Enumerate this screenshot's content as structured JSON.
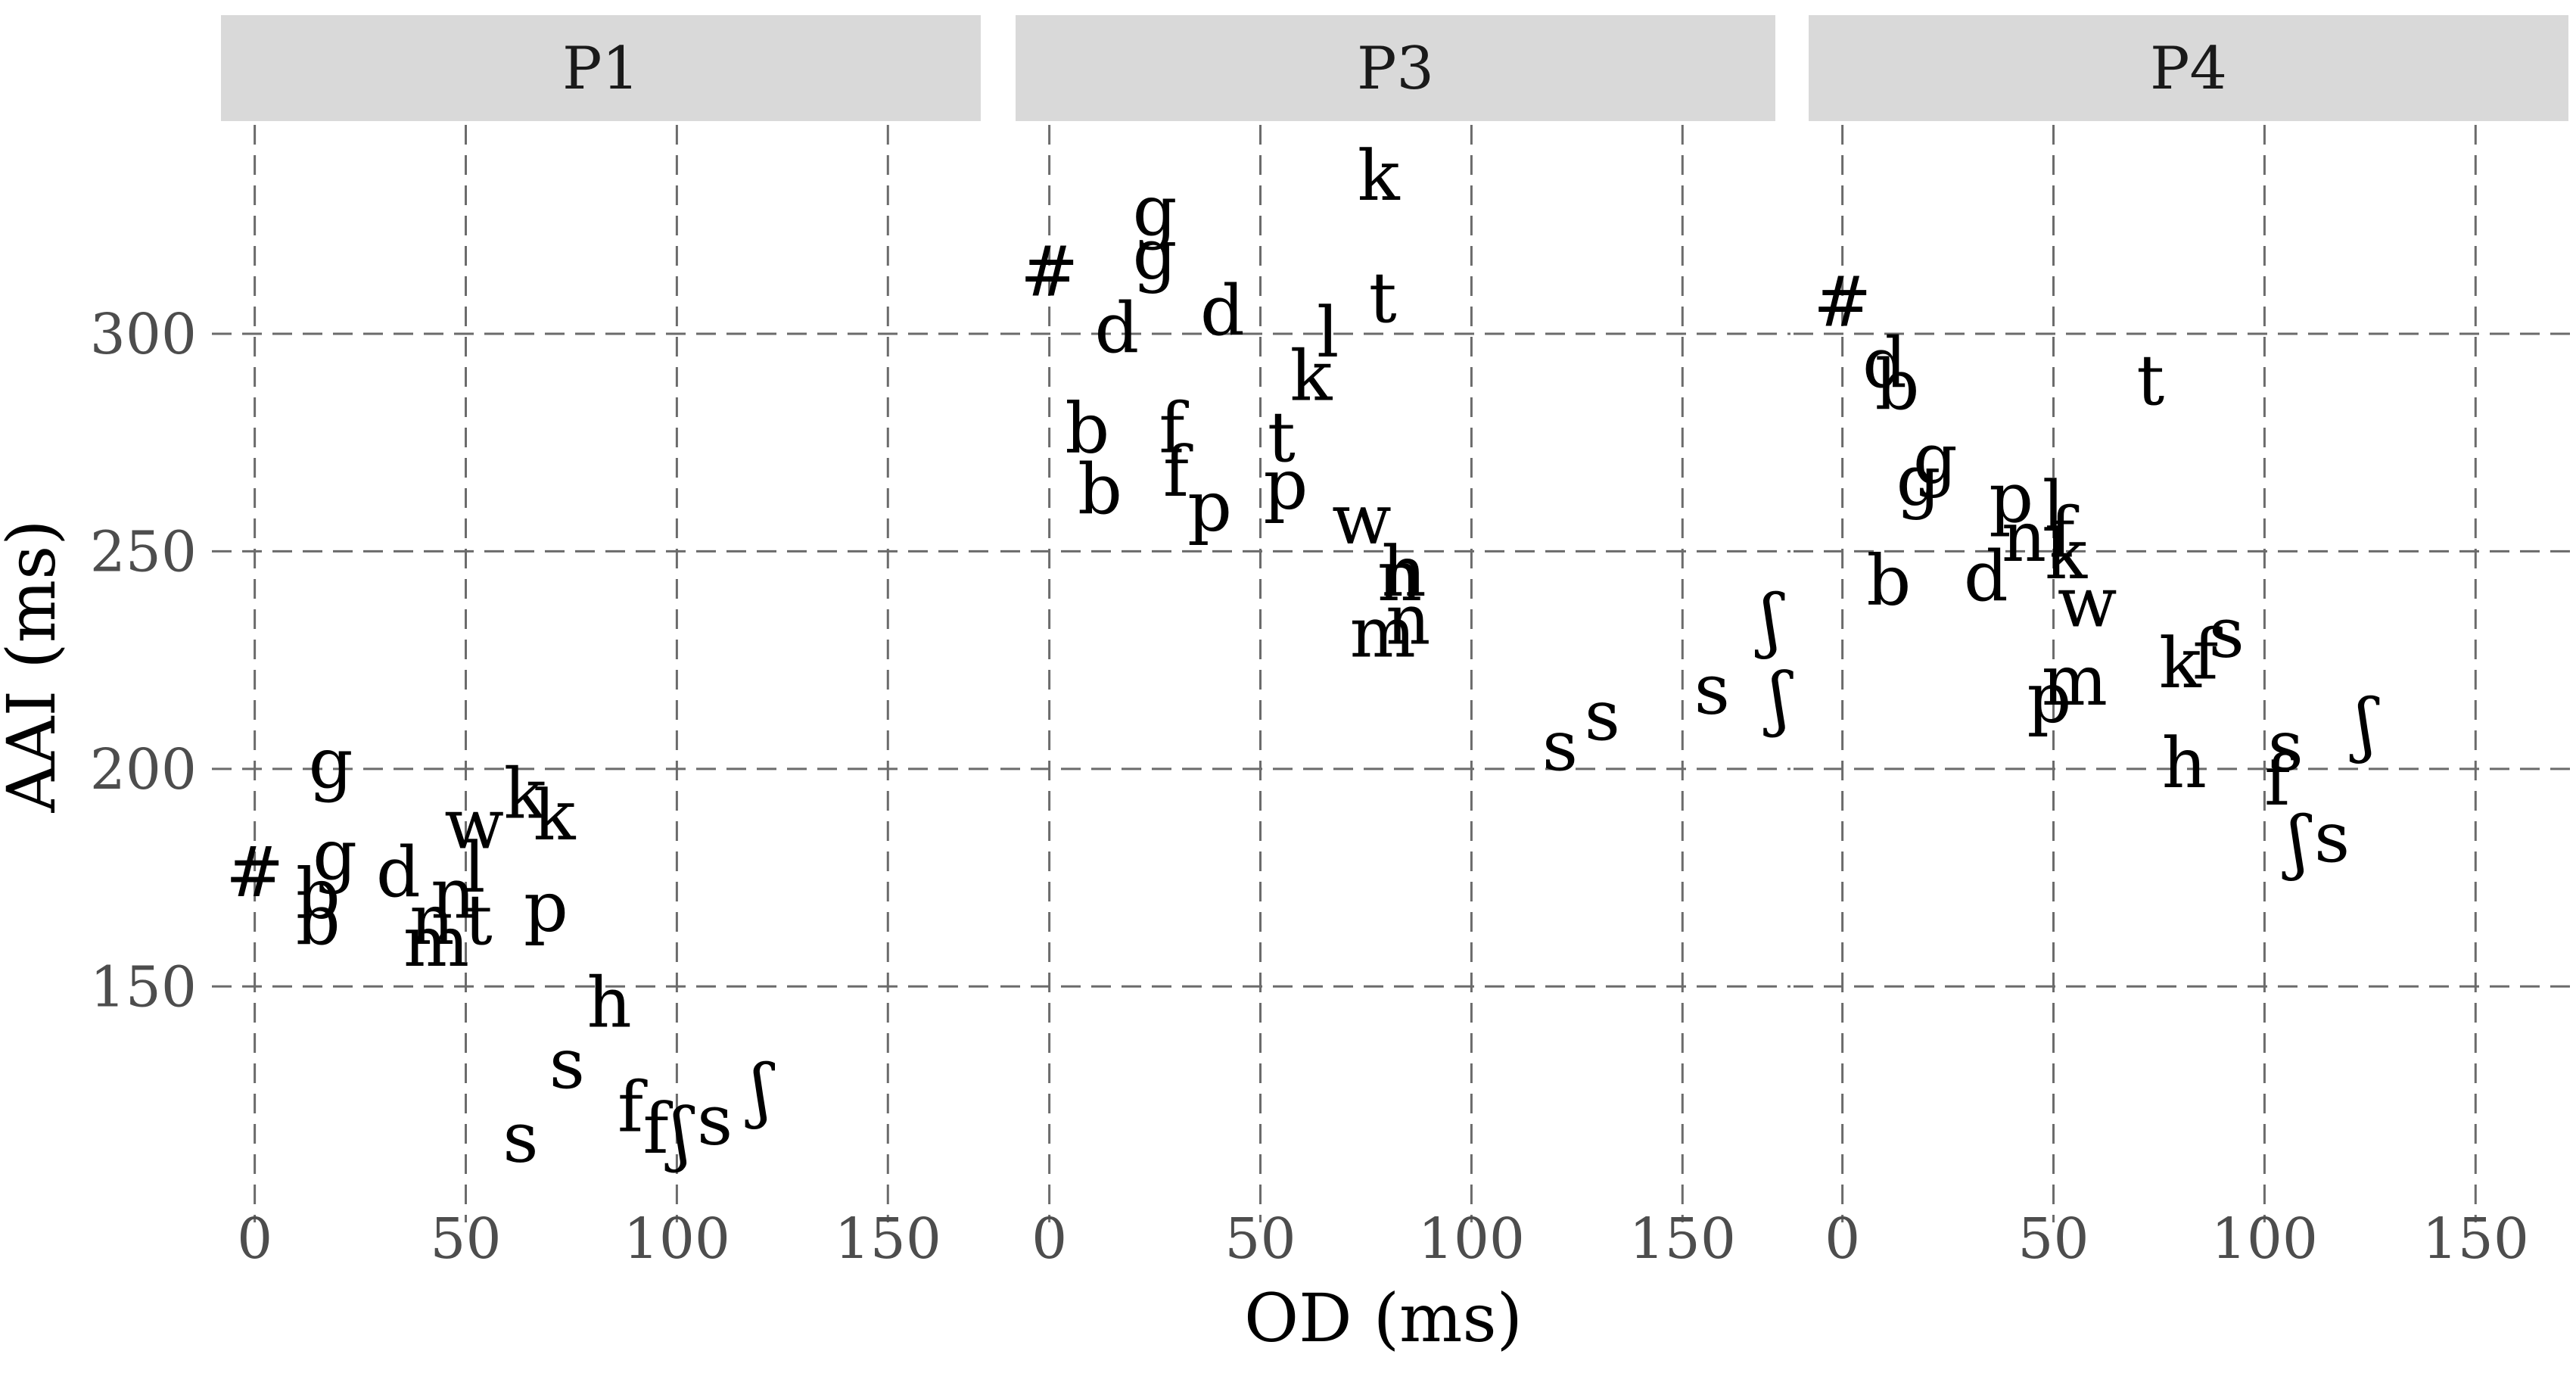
{
  "chart_data": {
    "type": "scatter",
    "xlabel": "OD (ms)",
    "ylabel": "AAI (ms)",
    "xticks": [
      0,
      50,
      100,
      150
    ],
    "yticks": [
      150,
      200,
      250,
      300
    ],
    "xlim": [
      -8,
      172
    ],
    "ylim": [
      101,
      348
    ],
    "grid": true,
    "panels": [
      {
        "name": "P1",
        "points": [
          {
            "label": "g",
            "x": 18,
            "y": 201
          },
          {
            "label": "k",
            "x": 64,
            "y": 194
          },
          {
            "label": "k",
            "x": 71,
            "y": 189
          },
          {
            "label": "w",
            "x": 52,
            "y": 187
          },
          {
            "label": "#",
            "x": 0,
            "y": 176
          },
          {
            "label": "g",
            "x": 19,
            "y": 180
          },
          {
            "label": "d",
            "x": 34,
            "y": 176
          },
          {
            "label": "l",
            "x": 52,
            "y": 177
          },
          {
            "label": "n",
            "x": 47,
            "y": 171
          },
          {
            "label": "p",
            "x": 69,
            "y": 168
          },
          {
            "label": "b",
            "x": 15,
            "y": 171
          },
          {
            "label": "b",
            "x": 15,
            "y": 165
          },
          {
            "label": "n",
            "x": 42,
            "y": 165
          },
          {
            "label": "t",
            "x": 53,
            "y": 165
          },
          {
            "label": "m",
            "x": 43,
            "y": 160
          },
          {
            "label": "h",
            "x": 84,
            "y": 146
          },
          {
            "label": "s",
            "x": 74,
            "y": 132
          },
          {
            "label": "ʃ",
            "x": 120,
            "y": 126
          },
          {
            "label": "f",
            "x": 89,
            "y": 122
          },
          {
            "label": "f",
            "x": 95,
            "y": 117
          },
          {
            "label": "ʃ",
            "x": 101,
            "y": 116
          },
          {
            "label": "s",
            "x": 109,
            "y": 119
          },
          {
            "label": "s",
            "x": 63,
            "y": 115
          }
        ]
      },
      {
        "name": "P3",
        "points": [
          {
            "label": "k",
            "x": 78,
            "y": 336
          },
          {
            "label": "g",
            "x": 25,
            "y": 328
          },
          {
            "label": "g",
            "x": 25,
            "y": 318
          },
          {
            "label": "#",
            "x": 0,
            "y": 314
          },
          {
            "label": "t",
            "x": 79,
            "y": 308
          },
          {
            "label": "d",
            "x": 41,
            "y": 305
          },
          {
            "label": "d",
            "x": 16,
            "y": 301
          },
          {
            "label": "l",
            "x": 66,
            "y": 300
          },
          {
            "label": "k",
            "x": 62,
            "y": 290
          },
          {
            "label": "b",
            "x": 9,
            "y": 278
          },
          {
            "label": "f",
            "x": 29,
            "y": 278
          },
          {
            "label": "t",
            "x": 55,
            "y": 276
          },
          {
            "label": "f",
            "x": 30,
            "y": 268
          },
          {
            "label": "b",
            "x": 12,
            "y": 264
          },
          {
            "label": "p",
            "x": 56,
            "y": 265
          },
          {
            "label": "p",
            "x": 38,
            "y": 260
          },
          {
            "label": "w",
            "x": 74,
            "y": 257
          },
          {
            "label": "h",
            "x": 84,
            "y": 245
          },
          {
            "label": "n",
            "x": 83,
            "y": 244
          },
          {
            "label": "n",
            "x": 85,
            "y": 234
          },
          {
            "label": "m",
            "x": 79,
            "y": 231
          },
          {
            "label": "ʃ",
            "x": 171,
            "y": 234
          },
          {
            "label": "ʃ",
            "x": 173,
            "y": 216
          },
          {
            "label": "s",
            "x": 157,
            "y": 218
          },
          {
            "label": "s",
            "x": 131,
            "y": 212
          },
          {
            "label": "s",
            "x": 121,
            "y": 205
          }
        ]
      },
      {
        "name": "P4",
        "points": [
          {
            "label": "#",
            "x": 0,
            "y": 307
          },
          {
            "label": "d",
            "x": 10,
            "y": 293
          },
          {
            "label": "b",
            "x": 13,
            "y": 288
          },
          {
            "label": "t",
            "x": 73,
            "y": 289
          },
          {
            "label": "g",
            "x": 22,
            "y": 271
          },
          {
            "label": "g",
            "x": 18,
            "y": 266
          },
          {
            "label": "p",
            "x": 40,
            "y": 262
          },
          {
            "label": "l",
            "x": 50,
            "y": 260
          },
          {
            "label": "n",
            "x": 43,
            "y": 253
          },
          {
            "label": "f",
            "x": 52,
            "y": 254
          },
          {
            "label": "k",
            "x": 53,
            "y": 249
          },
          {
            "label": "w",
            "x": 58,
            "y": 238
          },
          {
            "label": "d",
            "x": 34,
            "y": 244
          },
          {
            "label": "b",
            "x": 11,
            "y": 243
          },
          {
            "label": "s",
            "x": 91,
            "y": 231
          },
          {
            "label": "f",
            "x": 86,
            "y": 226
          },
          {
            "label": "k",
            "x": 80,
            "y": 224
          },
          {
            "label": "m",
            "x": 55,
            "y": 220
          },
          {
            "label": "p",
            "x": 49,
            "y": 216
          },
          {
            "label": "ʃ",
            "x": 124,
            "y": 210
          },
          {
            "label": "s",
            "x": 105,
            "y": 205
          },
          {
            "label": "h",
            "x": 81,
            "y": 201
          },
          {
            "label": "f",
            "x": 103,
            "y": 197
          },
          {
            "label": "ʃ",
            "x": 108,
            "y": 183
          },
          {
            "label": "s",
            "x": 116,
            "y": 184
          }
        ]
      }
    ]
  }
}
